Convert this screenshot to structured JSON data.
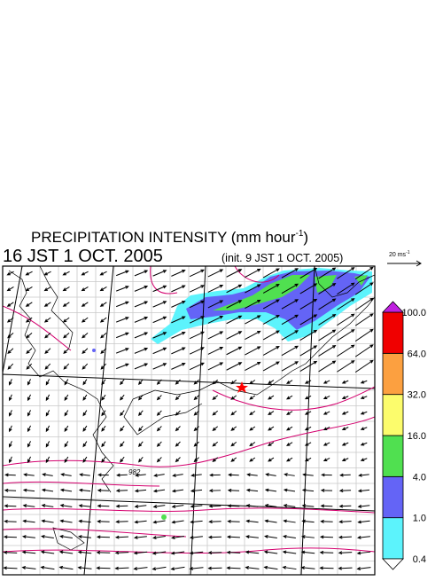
{
  "header": {
    "title": "PRECIPITATION INTENSITY (mm hour",
    "title_exponent": "-1",
    "title_close": ")",
    "valid_time": "16 JST 1 OCT. 2005",
    "init_time": "(init. 9 JST 1 OCT. 2005)"
  },
  "reference_vector": {
    "label": "20 ms",
    "exponent": "-1"
  },
  "map": {
    "isobar_label": "982"
  },
  "legend": {
    "levels": [
      "0.4",
      "1.0",
      "4.0",
      "16.0",
      "32.0",
      "64.0",
      "100.0"
    ],
    "colors": [
      "#5cf3fc",
      "#6464f6",
      "#50e050",
      "#fcfc6c",
      "#fca040",
      "#f00000"
    ],
    "over_color": "#c020e0",
    "under_color": "#ffffff"
  }
}
